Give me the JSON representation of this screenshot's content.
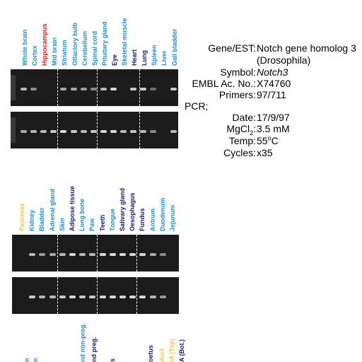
{
  "top_panel": {
    "lanes": [
      {
        "label": "Whole brain",
        "color": "#1f8fce"
      },
      {
        "label": "Cortex",
        "color": "#1f8fce"
      },
      {
        "label": "Hippocampus",
        "color": "#d0202a"
      },
      {
        "label": "Mid brain",
        "color": "#1f8fce"
      },
      {
        "label": "Striatum",
        "color": "#1f8fce"
      },
      {
        "label": "Olfactory bulb",
        "color": "#1f8fce"
      },
      {
        "label": "Cerebellum",
        "color": "#1f8fce"
      },
      {
        "label": "Spinal cord",
        "color": "#1f8fce"
      },
      {
        "label": "Pituitary gland",
        "color": "#1f8fce"
      },
      {
        "label": "Eye",
        "color": "#1a1a6e"
      },
      {
        "label": "Skeletal muscle",
        "color": "#1f8fce"
      },
      {
        "label": "Heart",
        "color": "#1a1a6e"
      },
      {
        "label": "Lung",
        "color": "#1a1a6e"
      },
      {
        "label": "Spleen",
        "color": "#1f8fce"
      },
      {
        "label": "Liver",
        "color": "#1f8fce"
      },
      {
        "label": "Gall bladder",
        "color": "#1f8fce"
      }
    ],
    "gel1_intensity": [
      0.7,
      0.4,
      0,
      0,
      0.6,
      0.6,
      0.5,
      0.4,
      0.7,
      0.9,
      0,
      0.8,
      0.8,
      0.2,
      0,
      0.8
    ],
    "gel2_intensity": [
      0.6,
      0.7,
      0.7,
      0.8,
      0.9,
      0.8,
      0.7,
      0.8,
      0.9,
      0.9,
      0.7,
      0.8,
      0.7,
      0.4,
      0,
      0.7
    ]
  },
  "info": {
    "gene_key": "Gene/EST:",
    "gene_val_1": "Notch gene homolog 3",
    "gene_val_2": "(Drosophila)",
    "symbol_key": "Symbol:",
    "symbol_val": "Notch3",
    "embl_key": "EMBL Ac. No.:",
    "embl_val": "X74760",
    "primers_key": "Primers:",
    "primers_val": "97/711",
    "pcr_label": "PCR;",
    "date_key": "Date:",
    "date_val": "17/9/97",
    "mgcl_key_pre": "MgCl",
    "mgcl_key_sub": "2",
    "mgcl_key_post": ":",
    "mgcl_val": "3.5 mM",
    "temp_key": "Temp:",
    "temp_val_pre": "55",
    "temp_val_sup": "o",
    "temp_val_post": "C",
    "cycles_key": "Cycles:",
    "cycles_val": "x35"
  },
  "bottom_panel": {
    "lanes": [
      {
        "label": "Pancreas",
        "color": "#f5c842"
      },
      {
        "label": "Kidney",
        "color": "#1f8fce"
      },
      {
        "label": "Bladder",
        "color": "#1f8fce"
      },
      {
        "label": "Adrenal gland",
        "color": "#1f8fce"
      },
      {
        "label": "Skin",
        "color": "#1f8fce"
      },
      {
        "label": "Adipose tissue",
        "color": "#1a1a6e"
      },
      {
        "label": "Long bone",
        "color": "#1f8fce"
      },
      {
        "label": "Paw",
        "color": "#1f8fce"
      },
      {
        "label": "Teeth",
        "color": "#1a1a6e"
      },
      {
        "label": "Tongue",
        "color": "#1f8fce"
      },
      {
        "label": "Salivary gland",
        "color": "#1a1a6e"
      },
      {
        "label": "Oesophagus",
        "color": "#1a1a6e"
      },
      {
        "label": "Fundus",
        "color": "#1a1a6e"
      },
      {
        "label": "Antrum",
        "color": "#1f8fce"
      },
      {
        "label": "Duodenum",
        "color": "#1f8fce"
      },
      {
        "label": "Jejunum",
        "color": "#1f8fce"
      }
    ],
    "gel1_intensity": [
      0,
      0.7,
      0.5,
      0.6,
      0.7,
      0.9,
      0.7,
      0.7,
      0.9,
      0.9,
      0.9,
      0.9,
      0.9,
      0.6,
      0.4,
      0
    ],
    "gel2_intensity": [
      0,
      0.8,
      0.7,
      0.7,
      0.8,
      0.9,
      0.8,
      0.8,
      0.9,
      0.9,
      0.9,
      0.9,
      0.9,
      0.7,
      0.5,
      0
    ]
  },
  "partial_labels": [
    {
      "label": "n",
      "color": "#1f8fce"
    },
    {
      "label": "n",
      "color": "#1f8fce"
    },
    {
      "label": "nd non-preg.",
      "color": "#1f8fce"
    },
    {
      "label": "nd preg.",
      "color": "#1a1a6e"
    },
    {
      "label": "s",
      "color": "#1a1a6e"
    },
    {
      "label": "oetus",
      "color": "#1a1a6e"
    },
    {
      "label": "duct",
      "color": "#f5c842"
    },
    {
      "label": "IA (Top)",
      "color": "#f5c842"
    },
    {
      "label": "A (Bot.)",
      "color": "#1a1a6e"
    }
  ]
}
